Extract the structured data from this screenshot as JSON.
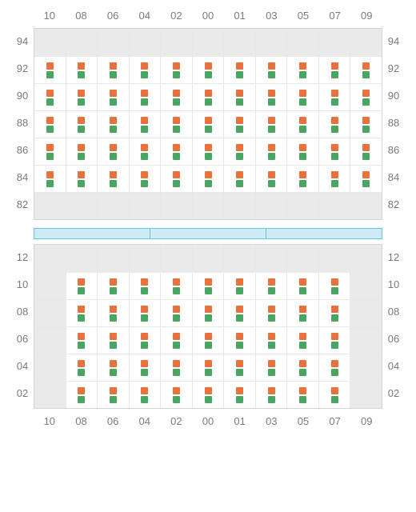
{
  "colors": {
    "marker_top": "#e8723e",
    "marker_bottom": "#48a662",
    "cell_empty_bg": "#eaeaea",
    "cell_filled_bg": "#ffffff",
    "grid_border": "#d6d6d6",
    "grid_line": "#e7e7e7",
    "label": "#7a7a7a",
    "bar_fill": "#cdeaf7",
    "bar_border": "#6cc3e8"
  },
  "columns": [
    "10",
    "08",
    "06",
    "04",
    "02",
    "00",
    "01",
    "03",
    "05",
    "07",
    "09"
  ],
  "middle_segments": 3,
  "top_section": {
    "rows": [
      "94",
      "92",
      "90",
      "88",
      "86",
      "84",
      "82"
    ],
    "pattern": [
      [
        0,
        0,
        0,
        0,
        0,
        0,
        0,
        0,
        0,
        0,
        0
      ],
      [
        1,
        1,
        1,
        1,
        1,
        1,
        1,
        1,
        1,
        1,
        1
      ],
      [
        1,
        1,
        1,
        1,
        1,
        1,
        1,
        1,
        1,
        1,
        1
      ],
      [
        1,
        1,
        1,
        1,
        1,
        1,
        1,
        1,
        1,
        1,
        1
      ],
      [
        1,
        1,
        1,
        1,
        1,
        1,
        1,
        1,
        1,
        1,
        1
      ],
      [
        1,
        1,
        1,
        1,
        1,
        1,
        1,
        1,
        1,
        1,
        1
      ],
      [
        0,
        0,
        0,
        0,
        0,
        0,
        0,
        0,
        0,
        0,
        0
      ]
    ]
  },
  "bottom_section": {
    "rows": [
      "12",
      "10",
      "08",
      "06",
      "04",
      "02"
    ],
    "pattern": [
      [
        0,
        0,
        0,
        0,
        0,
        0,
        0,
        0,
        0,
        0,
        0
      ],
      [
        0,
        1,
        1,
        1,
        1,
        1,
        1,
        1,
        1,
        1,
        0
      ],
      [
        0,
        1,
        1,
        1,
        1,
        1,
        1,
        1,
        1,
        1,
        0
      ],
      [
        0,
        1,
        1,
        1,
        1,
        1,
        1,
        1,
        1,
        1,
        0
      ],
      [
        0,
        1,
        1,
        1,
        1,
        1,
        1,
        1,
        1,
        1,
        0
      ],
      [
        0,
        1,
        1,
        1,
        1,
        1,
        1,
        1,
        1,
        1,
        0
      ]
    ]
  }
}
